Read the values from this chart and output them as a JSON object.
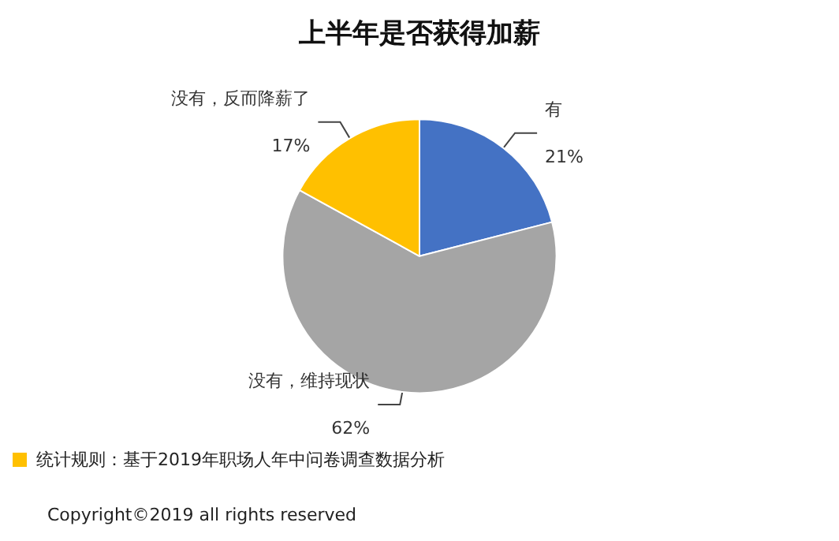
{
  "chart_data": {
    "type": "pie",
    "title": "上半年是否获得加薪",
    "categories": [
      "有",
      "没有，维持现状",
      "没有，反而降薪了"
    ],
    "values": [
      21,
      62,
      17
    ],
    "value_labels": [
      "21%",
      "62%",
      "17%"
    ],
    "colors": [
      "#4472c4",
      "#a5a5a5",
      "#ffc000"
    ],
    "legend": false,
    "annotations": [
      "统计规则：基于2019年职场人年中问卷调查数据分析",
      "Copyright©2019 all rights reserved"
    ]
  }
}
